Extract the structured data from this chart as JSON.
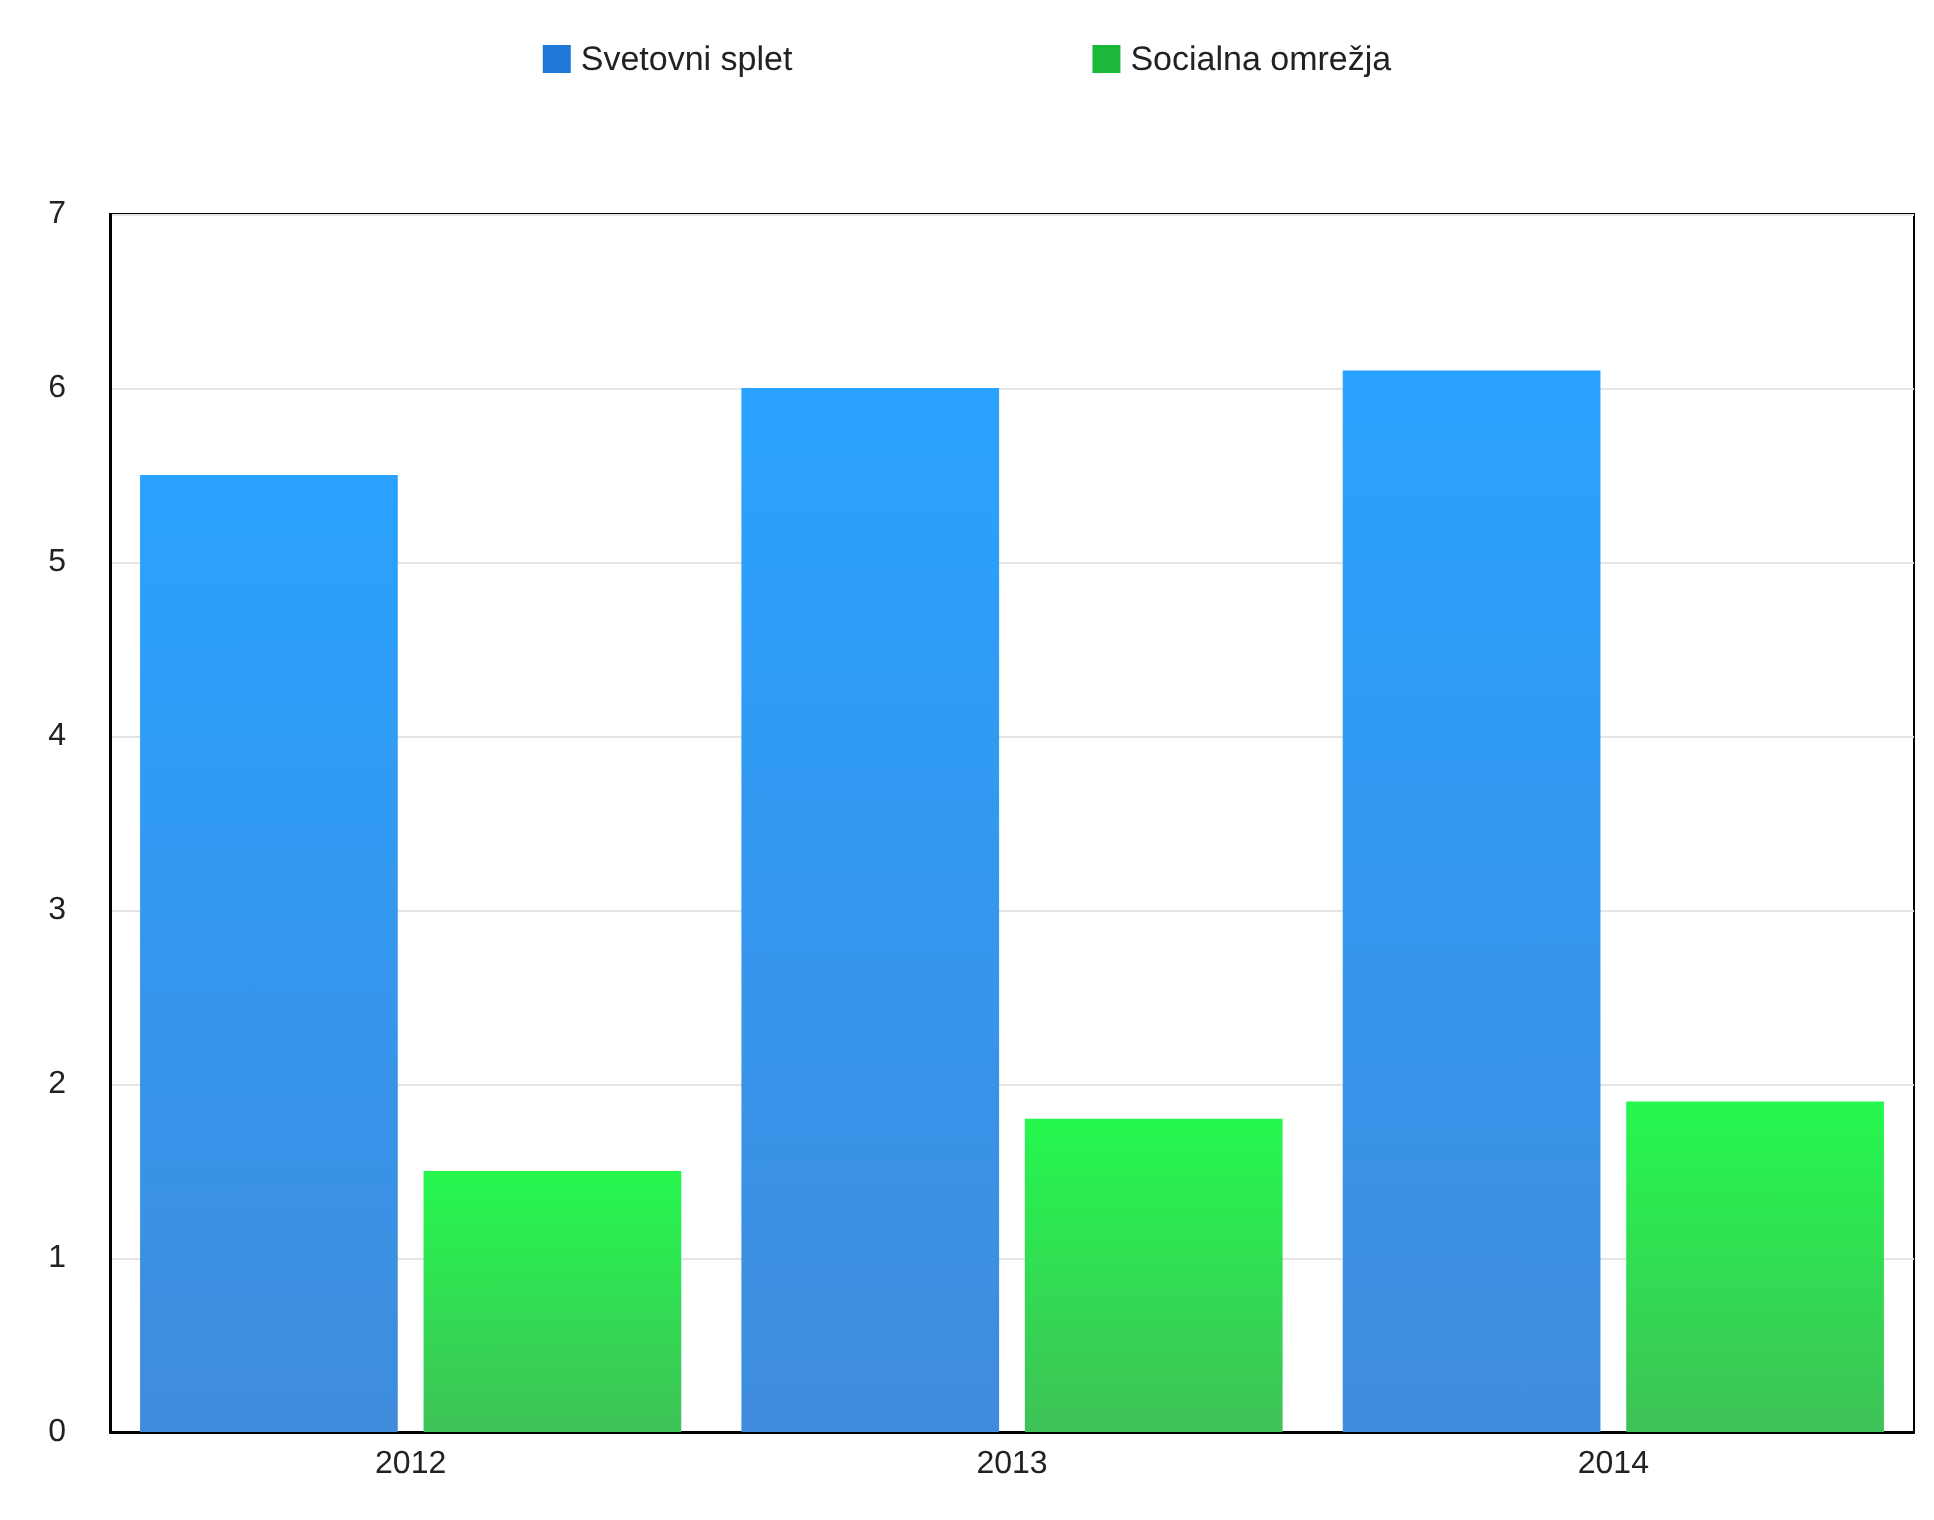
{
  "chart_data": {
    "type": "bar",
    "categories": [
      "2012",
      "2013",
      "2014"
    ],
    "series": [
      {
        "name": "Svetovni splet",
        "color": "#1f78d8",
        "values": [
          5.5,
          6.0,
          6.1
        ]
      },
      {
        "name": "Socialna omrežja",
        "color": "#1cb83a",
        "values": [
          1.5,
          1.8,
          1.9
        ]
      }
    ],
    "ylim": [
      0,
      7
    ],
    "yticks": [
      0,
      1,
      2,
      3,
      4,
      5,
      6,
      7
    ],
    "grid": "y",
    "legend": "top"
  }
}
